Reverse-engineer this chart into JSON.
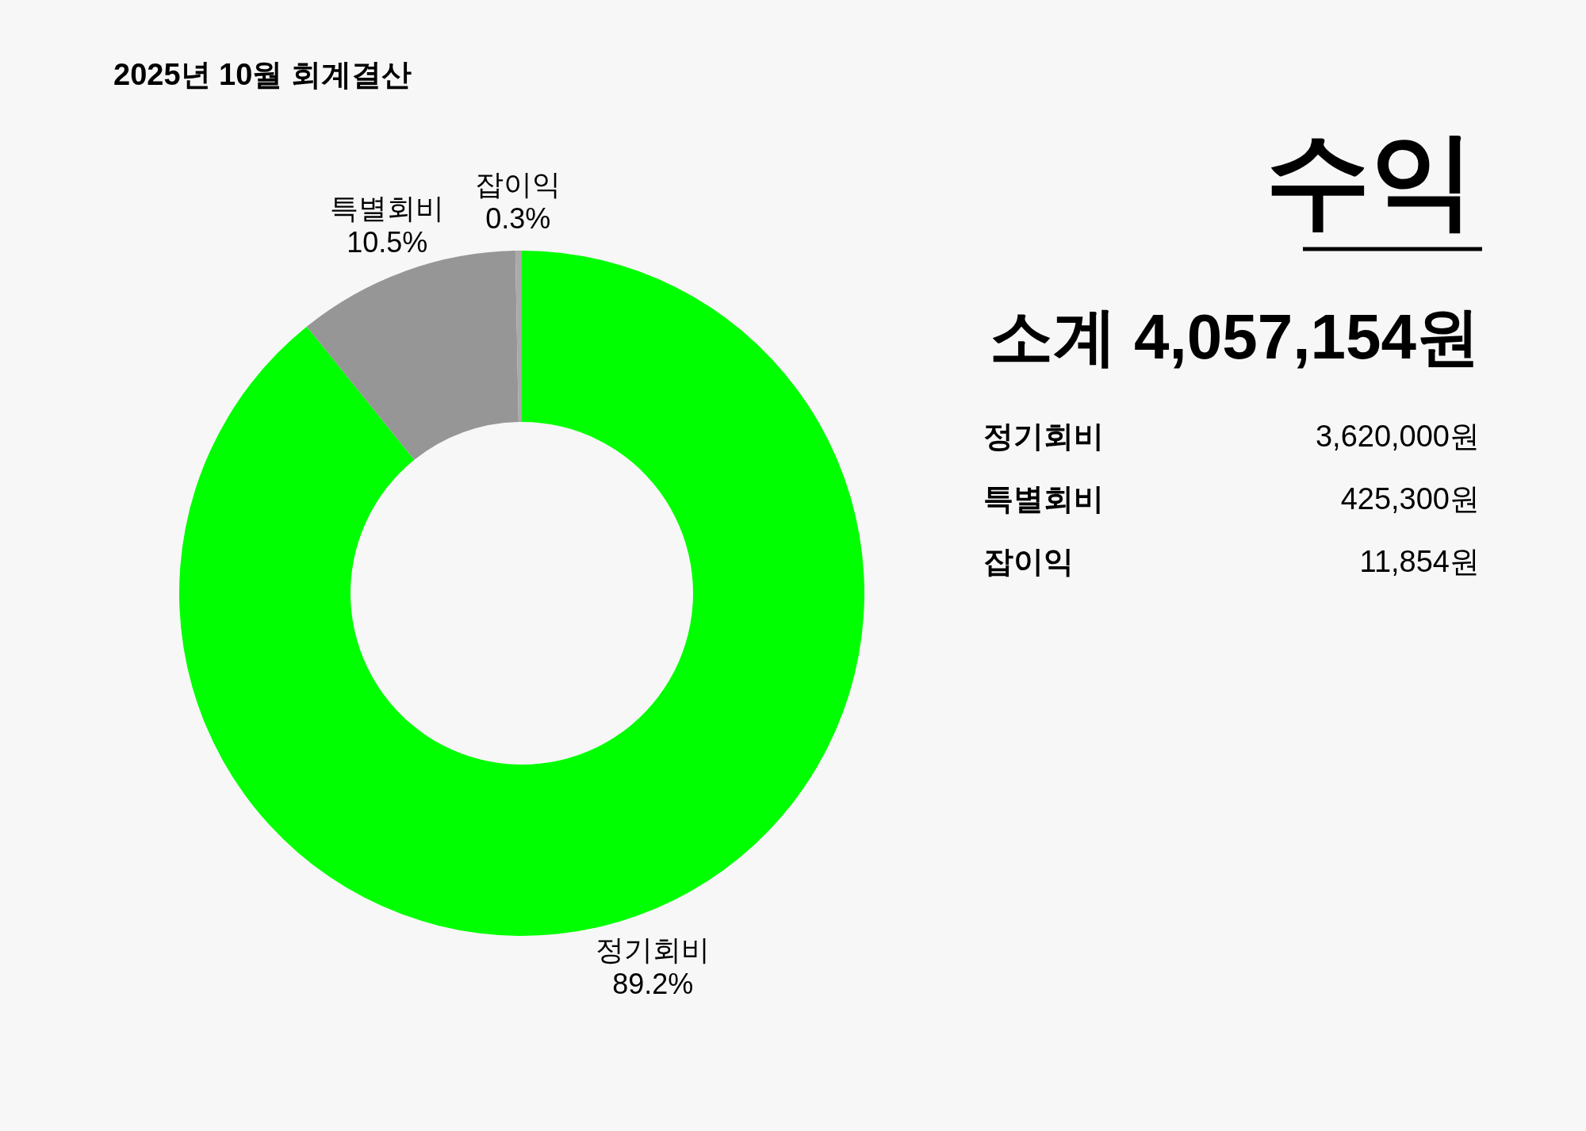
{
  "chart_data": [
    {
      "type": "donut",
      "title": "2025년 10월 회계결산",
      "categories": [
        "정기회비",
        "특별회비",
        "잡이익"
      ],
      "values": [
        89.2,
        10.5,
        0.3
      ],
      "colors": [
        "#00ff00",
        "#969696",
        "#aaaaaa"
      ],
      "value_labels": [
        "89.2%",
        "10.5%",
        "0.3%"
      ]
    },
    {
      "type": "other",
      "title": "수익",
      "subtitle": "소계 4,057,154원",
      "annotations": [
        "정기회비",
        "3,620,000원",
        "특별회비",
        "425,300원",
        "잡이익",
        "11,854원"
      ]
    }
  ]
}
